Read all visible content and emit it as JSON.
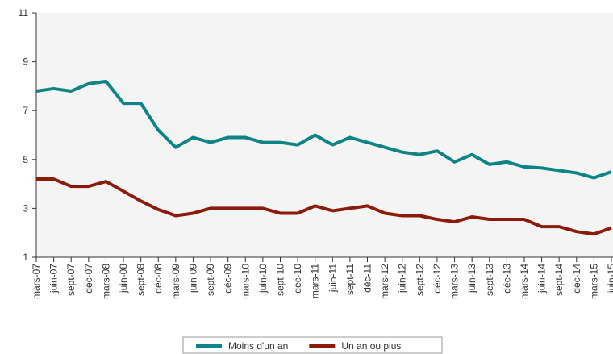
{
  "chart_data": {
    "type": "line",
    "categories": [
      "mars-07",
      "juin-07",
      "sept-07",
      "déc-07",
      "mars-08",
      "juin-08",
      "sept-08",
      "déc-08",
      "mars-09",
      "juin-09",
      "sept-09",
      "déc-09",
      "mars-10",
      "juin-10",
      "sept-10",
      "déc-10",
      "mars-11",
      "juin-11",
      "sept-11",
      "déc-11",
      "mars-12",
      "juin-12",
      "sept-12",
      "déc-12",
      "mars-13",
      "juin-13",
      "sept-13",
      "déc-13",
      "mars-14",
      "juin-14",
      "sept-14",
      "déc-14",
      "mars-15",
      "juin-15"
    ],
    "series": [
      {
        "name": "Moins d'un an",
        "color": "#0f8486",
        "values": [
          7.8,
          7.9,
          7.8,
          8.1,
          8.2,
          7.3,
          7.3,
          6.2,
          5.5,
          5.9,
          5.7,
          5.9,
          5.9,
          5.7,
          5.7,
          5.6,
          6.0,
          5.6,
          5.9,
          5.7,
          5.5,
          5.3,
          5.2,
          5.35,
          4.9,
          5.2,
          4.8,
          4.9,
          4.7,
          4.65,
          4.55,
          4.45,
          4.25,
          4.5
        ]
      },
      {
        "name": "Un an ou plus",
        "color": "#8b1c0c",
        "values": [
          4.2,
          4.2,
          3.9,
          3.9,
          4.1,
          3.7,
          3.3,
          2.95,
          2.7,
          2.8,
          3.0,
          3.0,
          3.0,
          3.0,
          2.8,
          2.8,
          3.1,
          2.9,
          3.0,
          3.1,
          2.8,
          2.7,
          2.7,
          2.55,
          2.45,
          2.65,
          2.55,
          2.55,
          2.55,
          2.25,
          2.25,
          2.05,
          1.95,
          2.2
        ]
      }
    ],
    "ylim": [
      1,
      11
    ],
    "yticks": [
      1,
      3,
      5,
      7,
      9,
      11
    ],
    "legend": "bottom"
  }
}
